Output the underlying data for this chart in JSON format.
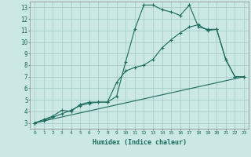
{
  "background_color": "#cce8e4",
  "grid_color": "#a0c8c4",
  "line_color": "#1a6b5a",
  "xlabel": "Humidex (Indice chaleur)",
  "xlim": [
    -0.5,
    23.5
  ],
  "ylim": [
    2.5,
    13.5
  ],
  "xtick_labels": [
    "0",
    "1",
    "2",
    "3",
    "4",
    "5",
    "6",
    "7",
    "8",
    "9",
    "10",
    "11",
    "12",
    "13",
    "14",
    "15",
    "16",
    "17",
    "18",
    "19",
    "20",
    "21",
    "22",
    "23"
  ],
  "ytick_labels": [
    "3",
    "4",
    "5",
    "6",
    "7",
    "8",
    "9",
    "10",
    "11",
    "12",
    "13"
  ],
  "line1_x": [
    0,
    1,
    2,
    3,
    4,
    5,
    6,
    7,
    8,
    9,
    10,
    11,
    12,
    13,
    14,
    15,
    16,
    17,
    18,
    19,
    20,
    21,
    22,
    23
  ],
  "line1_y": [
    3.0,
    3.2,
    3.5,
    3.8,
    4.1,
    4.5,
    4.7,
    4.8,
    4.8,
    5.3,
    8.3,
    11.1,
    13.2,
    13.2,
    12.8,
    12.6,
    12.3,
    13.2,
    11.3,
    11.1,
    11.1,
    8.5,
    7.0,
    7.0
  ],
  "line2_x": [
    0,
    1,
    2,
    3,
    4,
    5,
    6,
    7,
    8,
    9,
    10,
    11,
    12,
    13,
    14,
    15,
    16,
    17,
    18,
    19,
    20,
    21,
    22,
    23
  ],
  "line2_y": [
    3.0,
    3.3,
    3.6,
    4.1,
    4.0,
    4.6,
    4.8,
    4.8,
    4.8,
    6.5,
    7.5,
    7.8,
    8.0,
    8.5,
    9.5,
    10.2,
    10.8,
    11.3,
    11.5,
    11.0,
    11.1,
    8.5,
    7.0,
    7.0
  ],
  "line3_x": [
    0,
    23
  ],
  "line3_y": [
    3.0,
    7.0
  ],
  "xlabel_fontsize": 6,
  "xtick_fontsize": 4.5,
  "ytick_fontsize": 5.5
}
